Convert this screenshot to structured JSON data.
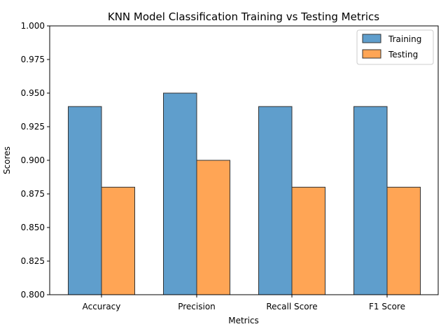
{
  "chart_data": {
    "type": "bar",
    "title": "KNN Model Classification Training vs Testing Metrics",
    "xlabel": "Metrics",
    "ylabel": "Scores",
    "categories": [
      "Accuracy",
      "Precision",
      "Recall Score",
      "F1 Score"
    ],
    "series": [
      {
        "name": "Training",
        "values": [
          0.94,
          0.95,
          0.94,
          0.94
        ],
        "color": "#5f9ecc"
      },
      {
        "name": "Testing",
        "values": [
          0.88,
          0.9,
          0.88,
          0.88
        ],
        "color": "#ffa555"
      }
    ],
    "ylim": [
      0.8,
      1.0
    ],
    "yticks": [
      "0.800",
      "0.825",
      "0.850",
      "0.875",
      "0.900",
      "0.925",
      "0.950",
      "0.975",
      "1.000"
    ],
    "grid": false,
    "legend_position": "top-right",
    "bar_edge_color": "#333333"
  }
}
